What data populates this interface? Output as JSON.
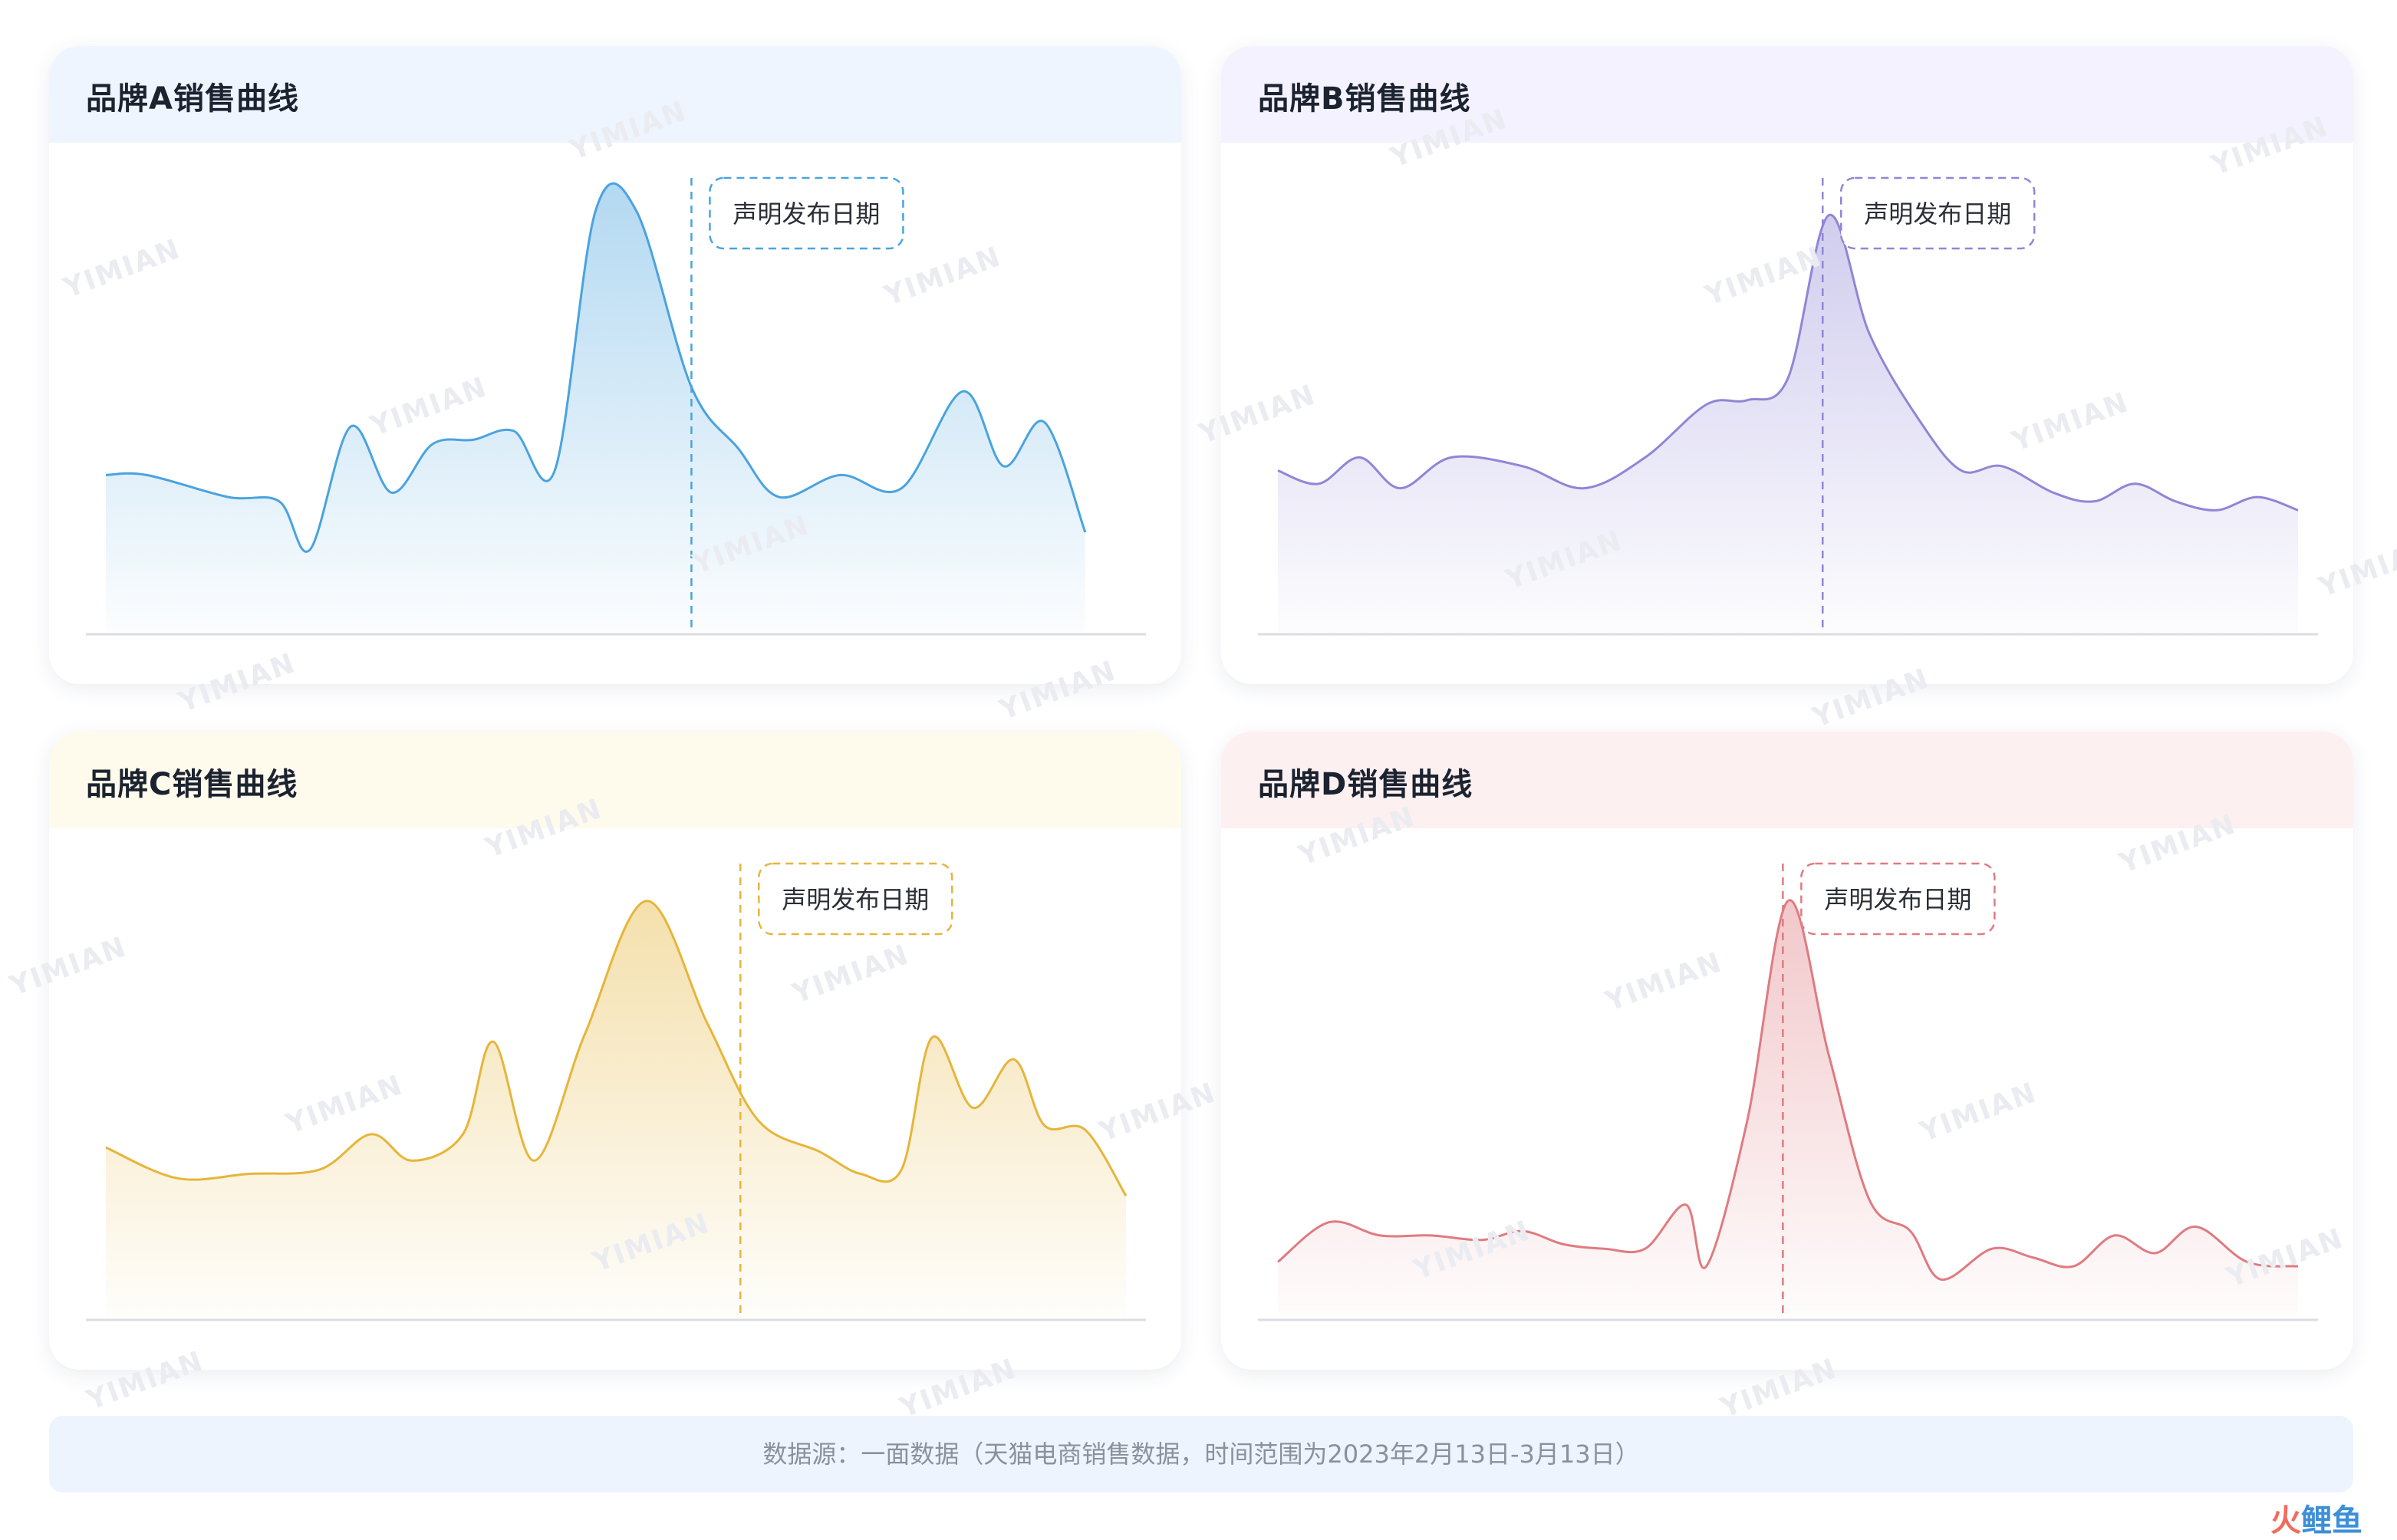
{
  "chart_data": [
    {
      "type": "area",
      "title": "品牌A销售曲线",
      "annotation": "声明发布日期",
      "annotation_x": 0.574,
      "color": "#4aa3df",
      "header_bg": "#eef5fe",
      "x_range": [
        0,
        1
      ],
      "ylim": [
        0,
        100
      ],
      "points": [
        [
          0,
          36
        ],
        [
          0.04,
          36
        ],
        [
          0.12,
          31
        ],
        [
          0.17,
          30
        ],
        [
          0.2,
          19
        ],
        [
          0.24,
          47
        ],
        [
          0.28,
          32
        ],
        [
          0.32,
          43
        ],
        [
          0.36,
          44
        ],
        [
          0.4,
          46
        ],
        [
          0.44,
          37
        ],
        [
          0.48,
          96
        ],
        [
          0.52,
          96
        ],
        [
          0.574,
          56
        ],
        [
          0.62,
          42
        ],
        [
          0.66,
          31
        ],
        [
          0.72,
          36
        ],
        [
          0.78,
          33
        ],
        [
          0.84,
          55
        ],
        [
          0.88,
          38
        ],
        [
          0.92,
          48
        ],
        [
          0.96,
          23
        ]
      ]
    },
    {
      "type": "area",
      "title": "品牌B销售曲线",
      "annotation": "声明发布日期",
      "annotation_x": 0.534,
      "color": "#8f86d6",
      "header_bg": "#f4f2ff",
      "x_range": [
        0,
        1
      ],
      "ylim": [
        0,
        100
      ],
      "points": [
        [
          0,
          37
        ],
        [
          0.04,
          34
        ],
        [
          0.08,
          40
        ],
        [
          0.12,
          33
        ],
        [
          0.17,
          40
        ],
        [
          0.24,
          38
        ],
        [
          0.3,
          33
        ],
        [
          0.36,
          40
        ],
        [
          0.42,
          52
        ],
        [
          0.46,
          53
        ],
        [
          0.5,
          58
        ],
        [
          0.54,
          95
        ],
        [
          0.58,
          68
        ],
        [
          0.63,
          48
        ],
        [
          0.67,
          37
        ],
        [
          0.71,
          38
        ],
        [
          0.76,
          32
        ],
        [
          0.8,
          30
        ],
        [
          0.84,
          34
        ],
        [
          0.88,
          30
        ],
        [
          0.92,
          28
        ],
        [
          0.96,
          31
        ],
        [
          1,
          28
        ]
      ]
    },
    {
      "type": "area",
      "title": "品牌C销售曲线",
      "annotation": "声明发布日期",
      "annotation_x": 0.622,
      "color": "#e6b53a",
      "header_bg": "#fffbec",
      "x_range": [
        0,
        1
      ],
      "ylim": [
        0,
        100
      ],
      "points": [
        [
          0,
          39
        ],
        [
          0.07,
          32
        ],
        [
          0.14,
          33
        ],
        [
          0.21,
          34
        ],
        [
          0.26,
          42
        ],
        [
          0.3,
          36
        ],
        [
          0.35,
          42
        ],
        [
          0.38,
          63
        ],
        [
          0.42,
          36
        ],
        [
          0.47,
          65
        ],
        [
          0.53,
          95
        ],
        [
          0.59,
          67
        ],
        [
          0.64,
          45
        ],
        [
          0.7,
          38
        ],
        [
          0.74,
          33
        ],
        [
          0.78,
          34
        ],
        [
          0.81,
          64
        ],
        [
          0.85,
          48
        ],
        [
          0.89,
          59
        ],
        [
          0.92,
          44
        ],
        [
          0.96,
          43
        ],
        [
          1,
          28
        ]
      ]
    },
    {
      "type": "area",
      "title": "品牌D销售曲线",
      "annotation": "声明发布日期",
      "annotation_x": 0.495,
      "color": "#df7b81",
      "header_bg": "#fdf0f1",
      "x_range": [
        0,
        1
      ],
      "ylim": [
        0,
        100
      ],
      "points": [
        [
          0,
          13
        ],
        [
          0.05,
          22
        ],
        [
          0.1,
          19
        ],
        [
          0.15,
          19
        ],
        [
          0.2,
          18
        ],
        [
          0.24,
          20
        ],
        [
          0.28,
          17
        ],
        [
          0.32,
          16
        ],
        [
          0.36,
          16
        ],
        [
          0.4,
          26
        ],
        [
          0.42,
          12
        ],
        [
          0.46,
          45
        ],
        [
          0.5,
          95
        ],
        [
          0.54,
          60
        ],
        [
          0.58,
          27
        ],
        [
          0.62,
          20
        ],
        [
          0.65,
          9
        ],
        [
          0.7,
          16
        ],
        [
          0.74,
          14
        ],
        [
          0.78,
          12
        ],
        [
          0.82,
          19
        ],
        [
          0.86,
          15
        ],
        [
          0.9,
          21
        ],
        [
          0.95,
          13
        ],
        [
          1,
          12
        ]
      ]
    }
  ],
  "footer": {
    "source": "数据源：一面数据（天猫电商销售数据，时间范围为2023年2月13日-3月13日）"
  },
  "watermark_text": "YIMIAN",
  "logo": {
    "part1": "火",
    "part2": "鲤鱼"
  }
}
